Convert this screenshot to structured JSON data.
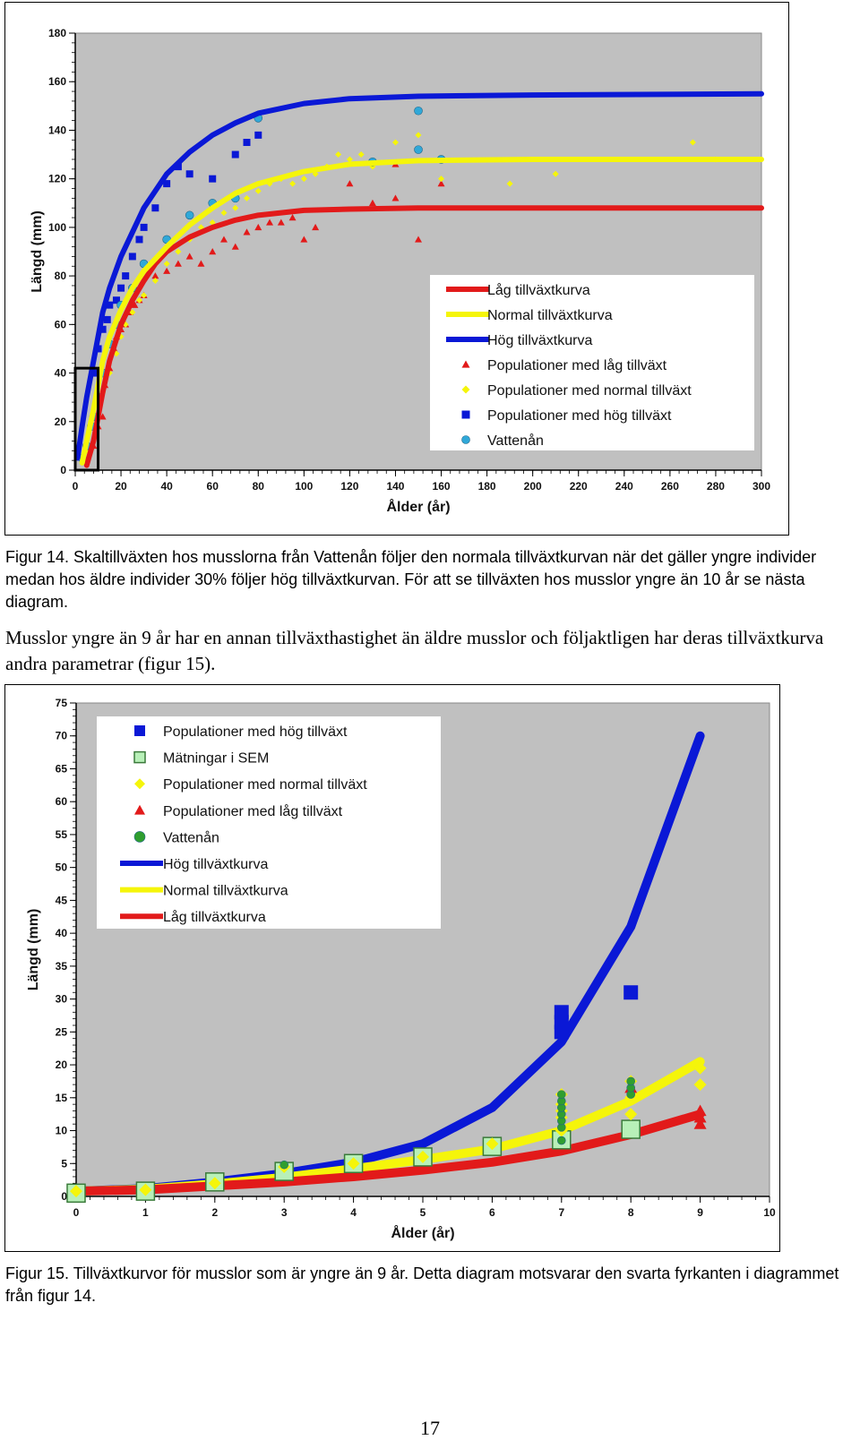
{
  "figure1": {
    "caption": "Figur 14. Skaltillväxten hos musslorna från Vattenån följer den normala tillväxtkurvan när det gäller yngre individer medan hos äldre individer 30% följer hög tillväxtkurvan. För att se tillväxten hos musslor yngre än 10 år se nästa diagram."
  },
  "body_text": "Musslor yngre än 9 år har en annan tillväxthastighet än äldre musslor och följaktligen har deras tillväxtkurva andra parametrar (figur 15).",
  "figure2": {
    "caption": "Figur 15.  Tillväxtkurvor för musslor som är yngre än 9 år. Detta diagram motsvarar den svarta fyrkanten i diagrammet från figur 14."
  },
  "page_number": "17",
  "colors": {
    "plot_bg": "#c0c0c0",
    "red": "#e21a1a",
    "yellow": "#f5f50a",
    "blue": "#0a18d6",
    "cyan": "#30a8d8",
    "green": "#2f9e2f",
    "sem_fill": "#b8f0b8",
    "sem_edge": "#3a7a3a"
  },
  "chart_data": [
    {
      "type": "scatter",
      "title": "",
      "xlabel": "Ålder (år)",
      "ylabel": "Längd (mm)",
      "xlim": [
        0,
        300
      ],
      "ylim": [
        0,
        180
      ],
      "x_ticks": [
        0,
        20,
        40,
        60,
        80,
        100,
        120,
        140,
        160,
        180,
        200,
        220,
        240,
        260,
        280,
        300
      ],
      "y_ticks": [
        0,
        20,
        40,
        60,
        80,
        100,
        120,
        140,
        160,
        180
      ],
      "grid": false,
      "legend_position": "bottom-right",
      "highlight_box": {
        "x": [
          0,
          10
        ],
        "y": [
          0,
          42
        ]
      },
      "legend": [
        {
          "label": "Låg tillväxtkurva",
          "marker": "line",
          "color": "#e21a1a"
        },
        {
          "label": "Normal tillväxtkurva",
          "marker": "line",
          "color": "#f5f50a"
        },
        {
          "label": "Hög tillväxtkurva",
          "marker": "line",
          "color": "#0a18d6"
        },
        {
          "label": "Populationer med låg tillväxt",
          "marker": "triangle",
          "color": "#e21a1a"
        },
        {
          "label": "Populationer med normal tillväxt",
          "marker": "diamond",
          "color": "#f5f50a"
        },
        {
          "label": "Populationer med hög tillväxt",
          "marker": "square",
          "color": "#0a18d6"
        },
        {
          "label": "Vattenån",
          "marker": "circle",
          "color": "#30a8d8"
        }
      ],
      "curves": [
        {
          "name": "Låg tillväxtkurva",
          "color": "#e21a1a",
          "x": [
            5,
            8,
            10,
            12,
            15,
            20,
            25,
            30,
            35,
            40,
            50,
            60,
            70,
            80,
            100,
            120,
            150,
            200,
            300
          ],
          "y": [
            2,
            12,
            22,
            32,
            45,
            60,
            70,
            78,
            85,
            90,
            96,
            100,
            103,
            105,
            107,
            107.5,
            108,
            108,
            108
          ]
        },
        {
          "name": "Normal tillväxtkurva",
          "color": "#f5f50a",
          "x": [
            3,
            5,
            8,
            10,
            12,
            15,
            20,
            25,
            30,
            40,
            50,
            60,
            70,
            80,
            100,
            120,
            150,
            200,
            300
          ],
          "y": [
            3,
            12,
            25,
            35,
            45,
            55,
            66,
            75,
            82,
            92,
            101,
            108,
            114,
            118,
            123,
            126,
            127.5,
            128,
            128
          ]
        },
        {
          "name": "Hög tillväxtkurva",
          "color": "#0a18d6",
          "x": [
            1,
            3,
            5,
            8,
            10,
            12,
            15,
            20,
            25,
            30,
            40,
            50,
            60,
            70,
            80,
            100,
            120,
            150,
            200,
            300
          ],
          "y": [
            5,
            18,
            30,
            45,
            55,
            65,
            75,
            88,
            98,
            108,
            122,
            131,
            138,
            143,
            147,
            151,
            153,
            154,
            154.5,
            155
          ]
        }
      ],
      "series": [
        {
          "name": "Populationer med låg tillväxt",
          "marker": "triangle",
          "color": "#e21a1a",
          "x": [
            8,
            10,
            12,
            13,
            15,
            17,
            18,
            20,
            22,
            24,
            26,
            28,
            30,
            35,
            40,
            45,
            50,
            55,
            60,
            65,
            70,
            75,
            80,
            85,
            90,
            95,
            100,
            105,
            120,
            130,
            140,
            140,
            150,
            160
          ],
          "y": [
            10,
            18,
            22,
            35,
            42,
            50,
            55,
            58,
            60,
            65,
            68,
            70,
            72,
            80,
            82,
            85,
            88,
            85,
            90,
            95,
            92,
            98,
            100,
            102,
            102,
            104,
            95,
            100,
            118,
            110,
            112,
            126,
            95,
            118
          ]
        },
        {
          "name": "Populationer med normal tillväxt",
          "marker": "diamond",
          "color": "#f5f50a",
          "x": [
            5,
            8,
            10,
            12,
            15,
            18,
            20,
            22,
            25,
            28,
            30,
            35,
            40,
            45,
            50,
            55,
            60,
            65,
            70,
            75,
            80,
            85,
            90,
            95,
            100,
            105,
            110,
            115,
            120,
            125,
            130,
            140,
            150,
            160,
            190,
            210,
            270,
            280
          ],
          "y": [
            8,
            18,
            28,
            32,
            40,
            48,
            55,
            60,
            65,
            70,
            72,
            78,
            85,
            90,
            95,
            100,
            102,
            106,
            108,
            112,
            115,
            118,
            120,
            118,
            120,
            122,
            125,
            130,
            128,
            130,
            125,
            135,
            138,
            120,
            118,
            122,
            135,
            128
          ]
        },
        {
          "name": "Populationer med hög tillväxt",
          "marker": "square",
          "color": "#0a18d6",
          "x": [
            8,
            10,
            12,
            14,
            15,
            18,
            20,
            22,
            25,
            28,
            30,
            35,
            40,
            45,
            50,
            60,
            70,
            75,
            80
          ],
          "y": [
            40,
            50,
            58,
            62,
            68,
            70,
            75,
            80,
            88,
            95,
            100,
            108,
            118,
            125,
            122,
            120,
            130,
            135,
            138
          ]
        },
        {
          "name": "Vattenån",
          "marker": "circle",
          "color": "#30a8d8",
          "x": [
            3,
            5,
            7,
            8,
            10,
            12,
            15,
            18,
            20,
            25,
            30,
            40,
            50,
            60,
            70,
            80,
            130,
            150,
            150,
            160
          ],
          "y": [
            5,
            10,
            18,
            22,
            30,
            40,
            52,
            60,
            68,
            75,
            85,
            95,
            105,
            110,
            112,
            145,
            127,
            148,
            132,
            128
          ]
        }
      ]
    },
    {
      "type": "scatter",
      "title": "",
      "xlabel": "Ålder (år)",
      "ylabel": "Längd (mm)",
      "xlim": [
        0,
        10
      ],
      "ylim": [
        0,
        75
      ],
      "x_ticks": [
        0,
        1,
        2,
        3,
        4,
        5,
        6,
        7,
        8,
        9,
        10
      ],
      "y_ticks": [
        0,
        5,
        10,
        15,
        20,
        25,
        30,
        35,
        40,
        45,
        50,
        55,
        60,
        65,
        70,
        75
      ],
      "grid": false,
      "legend_position": "top-left",
      "legend": [
        {
          "label": "Populationer med hög tillväxt",
          "marker": "square",
          "color": "#0a18d6"
        },
        {
          "label": "Mätningar i SEM",
          "marker": "open-square",
          "color": "#b8f0b8"
        },
        {
          "label": "Populationer med normal tillväxt",
          "marker": "diamond",
          "color": "#f5f50a"
        },
        {
          "label": "Populationer med låg tillväxt",
          "marker": "triangle",
          "color": "#e21a1a"
        },
        {
          "label": "Vattenån",
          "marker": "circle",
          "color": "#2f9e2f"
        },
        {
          "label": "Hög tillväxtkurva",
          "marker": "line",
          "color": "#0a18d6"
        },
        {
          "label": "Normal tillväxtkurva",
          "marker": "line",
          "color": "#f5f50a"
        },
        {
          "label": "Låg tillväxtkurva",
          "marker": "line",
          "color": "#e21a1a"
        }
      ],
      "curves": [
        {
          "name": "Hög tillväxtkurva",
          "color": "#0a18d6",
          "x": [
            0,
            1,
            2,
            3,
            4,
            5,
            6,
            7,
            8,
            9
          ],
          "y": [
            0.8,
            1.2,
            2.2,
            3.5,
            5.2,
            8,
            13.5,
            23.5,
            41,
            70
          ]
        },
        {
          "name": "Normal tillväxtkurva",
          "color": "#f5f50a",
          "x": [
            0,
            1,
            2,
            3,
            4,
            5,
            6,
            7,
            8,
            9
          ],
          "y": [
            0.8,
            1.1,
            1.9,
            2.9,
            4.2,
            5.6,
            7.2,
            10,
            14.5,
            20.5
          ]
        },
        {
          "name": "Låg tillväxtkurva",
          "color": "#e21a1a",
          "x": [
            0,
            1,
            2,
            3,
            4,
            5,
            6,
            7,
            8,
            9
          ],
          "y": [
            0.8,
            1,
            1.6,
            2.2,
            3,
            4,
            5.2,
            6.9,
            9.4,
            12.5
          ]
        }
      ],
      "series": [
        {
          "name": "Populationer med hög tillväxt",
          "marker": "square",
          "color": "#0a18d6",
          "x": [
            7,
            7,
            7,
            8
          ],
          "y": [
            25,
            26.5,
            28,
            31
          ]
        },
        {
          "name": "Mätningar i SEM",
          "marker": "open-square",
          "color": "#b8f0b8",
          "x": [
            0,
            1,
            2,
            3,
            4,
            5,
            6,
            7,
            8
          ],
          "y": [
            0.5,
            0.8,
            2.2,
            3.8,
            5,
            6,
            7.6,
            8.6,
            10.2
          ]
        },
        {
          "name": "Populationer med normal tillväxt",
          "marker": "diamond",
          "color": "#f5f50a",
          "x": [
            0,
            1,
            2,
            3,
            4,
            5,
            6,
            7,
            7,
            7,
            7,
            7,
            8,
            8,
            8,
            9,
            9
          ],
          "y": [
            0.8,
            1,
            2,
            4.5,
            5,
            6,
            8,
            10,
            12,
            13,
            14,
            15.5,
            12.5,
            15,
            17.5,
            17,
            19.5
          ]
        },
        {
          "name": "Populationer med låg tillväxt",
          "marker": "triangle",
          "color": "#e21a1a",
          "x": [
            8,
            9,
            9,
            9
          ],
          "y": [
            16.5,
            11,
            12,
            13
          ]
        },
        {
          "name": "Vattenån",
          "marker": "circle",
          "color": "#2f9e2f",
          "x": [
            3,
            7,
            7,
            7,
            7,
            7,
            7,
            7,
            8,
            8,
            8
          ],
          "y": [
            4.8,
            8.5,
            10.5,
            11.5,
            12.5,
            13.5,
            14.5,
            15.5,
            15.5,
            16.5,
            17.5
          ]
        }
      ]
    }
  ]
}
